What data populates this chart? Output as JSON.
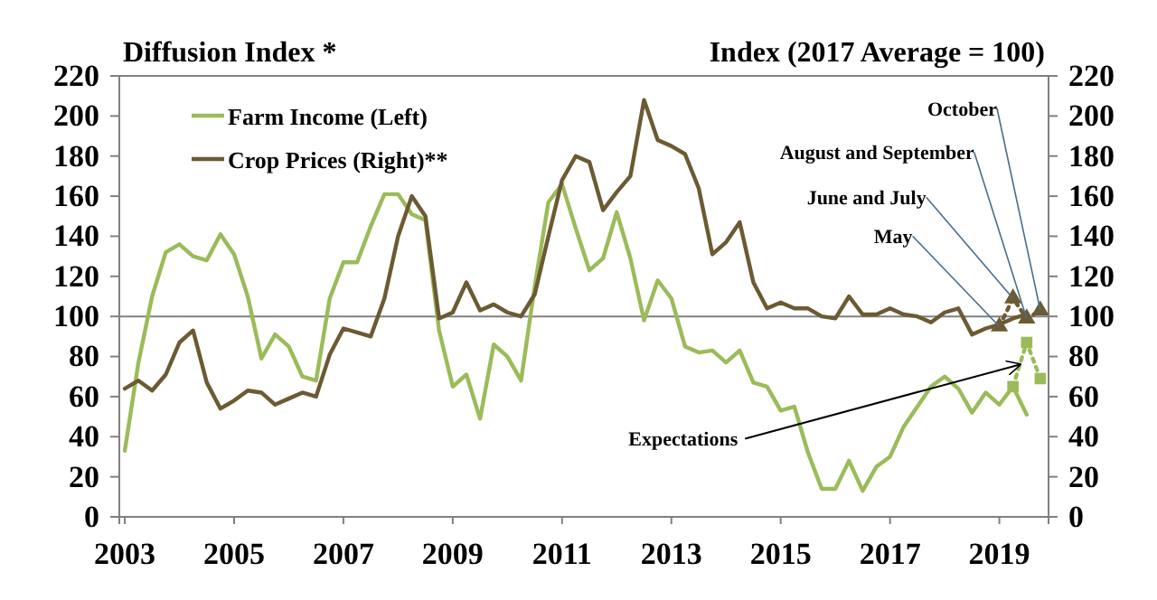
{
  "chart_data": {
    "type": "line",
    "ylabel": "Diffusion Index *",
    "y2label": "Index (2017 Average = 100)",
    "xlim": [
      2002.9,
      2019.9
    ],
    "xticks": [
      2003,
      2005,
      2007,
      2009,
      2011,
      2013,
      2015,
      2017,
      2019
    ],
    "ylim": [
      0,
      220
    ],
    "yticks": [
      0,
      20,
      40,
      60,
      80,
      100,
      120,
      140,
      160,
      180,
      200,
      220
    ],
    "y2lim": [
      0,
      220
    ],
    "y2ticks": [
      0,
      20,
      40,
      60,
      80,
      100,
      120,
      140,
      160,
      180,
      200,
      220
    ],
    "grid": false,
    "legend": "top left",
    "marker": "none",
    "line_style": "solid",
    "ref_lines": [
      {
        "axis": "y",
        "value": 100,
        "color": "#808080"
      }
    ],
    "series": [
      {
        "name": "Farm Income (Left)",
        "color": "#9bbb59",
        "x": [
          2003,
          2003.25,
          2003.5,
          2003.75,
          2004,
          2004.25,
          2004.5,
          2004.75,
          2005,
          2005.25,
          2005.5,
          2005.75,
          2006,
          2006.25,
          2006.5,
          2006.75,
          2007,
          2007.25,
          2007.5,
          2007.75,
          2008,
          2008.25,
          2008.5,
          2008.75,
          2009,
          2009.25,
          2009.5,
          2009.75,
          2010,
          2010.25,
          2010.5,
          2010.75,
          2011,
          2011.25,
          2011.5,
          2011.75,
          2012,
          2012.25,
          2012.5,
          2012.75,
          2013,
          2013.25,
          2013.5,
          2013.75,
          2014,
          2014.25,
          2014.5,
          2014.75,
          2015,
          2015.25,
          2015.5,
          2015.75,
          2016,
          2016.25,
          2016.5,
          2016.75,
          2017,
          2017.25,
          2017.5,
          2017.75,
          2018,
          2018.25,
          2018.5,
          2018.75,
          2019,
          2019.25,
          2019.5
        ],
        "values": [
          33,
          77,
          110,
          132,
          136,
          130,
          128,
          141,
          131,
          110,
          79,
          91,
          85,
          70,
          68,
          109,
          127,
          127,
          145,
          161,
          161,
          151,
          148,
          93,
          65,
          71,
          49,
          86,
          80,
          68,
          115,
          157,
          166,
          144,
          123,
          129,
          152,
          129,
          98,
          118,
          109,
          85,
          82,
          83,
          77,
          83,
          67,
          65,
          53,
          55,
          32,
          14,
          14,
          28,
          13,
          25,
          30,
          45,
          55,
          65,
          70,
          64,
          52,
          62,
          56,
          65,
          51
        ]
      },
      {
        "name": "Crop Prices (Right)**",
        "color": "#6b5a33",
        "x": [
          2003,
          2003.25,
          2003.5,
          2003.75,
          2004,
          2004.25,
          2004.5,
          2004.75,
          2005,
          2005.25,
          2005.5,
          2005.75,
          2006,
          2006.25,
          2006.5,
          2006.75,
          2007,
          2007.25,
          2007.5,
          2007.75,
          2008,
          2008.25,
          2008.5,
          2008.75,
          2009,
          2009.25,
          2009.5,
          2009.75,
          2010,
          2010.25,
          2010.5,
          2010.75,
          2011,
          2011.25,
          2011.5,
          2011.75,
          2012,
          2012.25,
          2012.5,
          2012.75,
          2013,
          2013.25,
          2013.5,
          2013.75,
          2014,
          2014.25,
          2014.5,
          2014.75,
          2015,
          2015.25,
          2015.5,
          2015.75,
          2016,
          2016.25,
          2016.5,
          2016.75,
          2017,
          2017.25,
          2017.5,
          2017.75,
          2018,
          2018.25,
          2018.5,
          2018.75,
          2019,
          2019.25,
          2019.5
        ],
        "values": [
          64,
          68,
          63,
          71,
          87,
          93,
          67,
          54,
          58,
          63,
          62,
          56,
          59,
          62,
          60,
          81,
          94,
          92,
          90,
          109,
          140,
          160,
          150,
          99,
          102,
          117,
          103,
          106,
          102,
          100,
          111,
          140,
          168,
          180,
          177,
          153,
          162,
          170,
          208,
          188,
          185,
          181,
          164,
          131,
          137,
          147,
          117,
          104,
          107,
          104,
          104,
          100,
          99,
          110,
          101,
          101,
          104,
          101,
          100,
          97,
          102,
          104,
          91,
          94,
          96,
          99,
          101
        ]
      },
      {
        "color": "#9bbb59",
        "x": [
          2019.25,
          2019.5,
          2019.75
        ],
        "values": [
          65,
          87,
          69
        ],
        "marker": "square",
        "line_style": "dotted"
      },
      {
        "color": "#6b5a33",
        "x": [
          2019,
          2019.25,
          2019.5,
          2019.75
        ],
        "values": [
          95,
          109,
          99,
          103
        ],
        "marker": "triangle",
        "line_style": "dotted"
      }
    ],
    "annotations": [
      {
        "text": "Expectations",
        "x": 2019.375,
        "y": 76
      },
      {
        "text": "May",
        "x": 2019,
        "y": 95
      },
      {
        "text": "June and July",
        "x": 2019.25,
        "y": 109
      },
      {
        "text": "August and September",
        "x": 2019.5,
        "y": 99
      },
      {
        "text": "October",
        "x": 2019.75,
        "y": 103
      }
    ]
  }
}
